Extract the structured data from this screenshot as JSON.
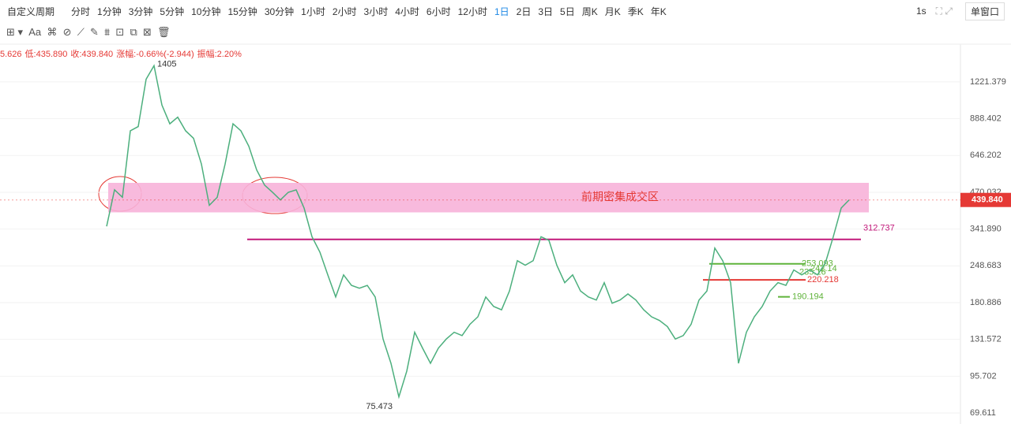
{
  "header": {
    "periods": [
      "自定义周期",
      "分时",
      "1分钟",
      "3分钟",
      "5分钟",
      "10分钟",
      "15分钟",
      "30分钟",
      "1小时",
      "2小时",
      "3小时",
      "4小时",
      "6小时",
      "12小时",
      "1日",
      "2日",
      "3日",
      "5日",
      "周K",
      "月K",
      "季K",
      "年K"
    ],
    "active": "1日",
    "speed": "1s",
    "window": "单窗口"
  },
  "info": {
    "high": "5.626",
    "low": "低:435.890",
    "close": "收:439.840",
    "change": "涨幅:-0.66%(-2.944)",
    "amplitude": "振幅:2.20%"
  },
  "chart_data": {
    "type": "line",
    "color": "#4caf7d",
    "log_scale": true,
    "values": [
      350,
      480,
      450,
      800,
      830,
      1250,
      1405,
      1000,
      850,
      900,
      800,
      750,
      600,
      420,
      450,
      600,
      850,
      800,
      700,
      570,
      500,
      470,
      440,
      470,
      480,
      410,
      320,
      280,
      230,
      190,
      230,
      210,
      205,
      210,
      190,
      132,
      107,
      80,
      100,
      140,
      122,
      107,
      122,
      132,
      140,
      136,
      150,
      160,
      190,
      175,
      170,
      200,
      260,
      250,
      260,
      320,
      310,
      250,
      215,
      230,
      200,
      190,
      185,
      215,
      180,
      185,
      195,
      185,
      170,
      160,
      155,
      147,
      132,
      136,
      150,
      185,
      200,
      290,
      260,
      215,
      107,
      140,
      160,
      175,
      200,
      215,
      210,
      240,
      230,
      240,
      230,
      255,
      320,
      410,
      439.84
    ],
    "ylim": [
      64.6,
      1648
    ],
    "yticks": [
      1221.379,
      888.402,
      646.202,
      470.032,
      {
        "value": 341.89,
        "label": "341.890"
      },
      248.683,
      180.886,
      131.572,
      95.702,
      69.611
    ],
    "current": {
      "value": 439.84,
      "label": "439.840"
    },
    "zone": {
      "label": "前期密集成交区",
      "range": [
        395,
        510
      ]
    },
    "high_label": 1405,
    "low_label": 75.473,
    "levels": [
      {
        "value": 312.737,
        "color": "#c2187a"
      },
      {
        "value": 253.093,
        "color": "#5fb33a"
      },
      {
        "value": 242.14,
        "color": "#5fb33a"
      },
      {
        "value": 235.16,
        "color": "#5fb33a"
      },
      {
        "value": 220.218,
        "color": "#e53935"
      },
      {
        "value": 190.194,
        "color": "#5fb33a"
      }
    ]
  }
}
